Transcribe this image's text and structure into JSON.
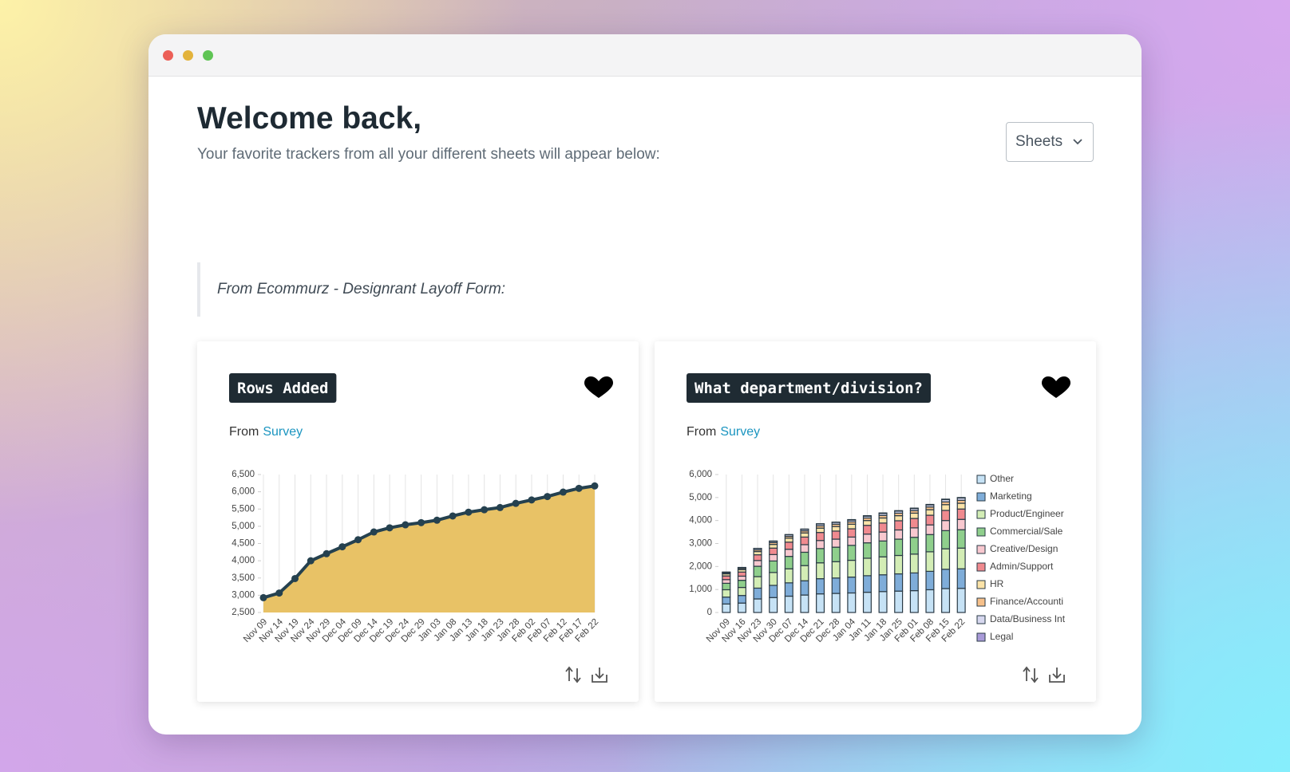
{
  "header": {
    "title": "Welcome back,",
    "subtitle": "Your favorite trackers from all your different sheets will appear below:"
  },
  "dropdown": {
    "label": "Sheets"
  },
  "section": {
    "label": "From Ecommurz - Designrant Layoff Form:"
  },
  "cards": [
    {
      "from": "From",
      "source": "Survey"
    },
    {
      "from": "From",
      "source": "Survey"
    }
  ],
  "chart_data": [
    {
      "type": "area",
      "title": "Rows Added",
      "color": "#e8c266",
      "line_color": "#25414f",
      "grid": true,
      "categories": [
        "Nov 09",
        "Nov 14",
        "Nov 19",
        "Nov 24",
        "Nov 29",
        "Dec 04",
        "Dec 09",
        "Dec 14",
        "Dec 19",
        "Dec 24",
        "Dec 29",
        "Jan 03",
        "Jan 08",
        "Jan 13",
        "Jan 18",
        "Jan 23",
        "Jan 28",
        "Feb 02",
        "Feb 07",
        "Feb 12",
        "Feb 17",
        "Feb 22"
      ],
      "values": [
        2930,
        3065,
        3484,
        3999,
        4205,
        4405,
        4610,
        4835,
        4955,
        5042,
        5105,
        5176,
        5298,
        5408,
        5479,
        5543,
        5664,
        5763,
        5862,
        5990,
        6099,
        6170
      ],
      "ylim": [
        2500,
        6500
      ],
      "yticks": [
        {
          "value": 2500,
          "label": "2,500"
        },
        {
          "value": 3000,
          "label": "3,000"
        },
        {
          "value": 3500,
          "label": "3,500"
        },
        {
          "value": 4000,
          "label": "4,000"
        },
        {
          "value": 4500,
          "label": "4,500"
        },
        {
          "value": 5000,
          "label": "5,000"
        },
        {
          "value": 5500,
          "label": "5,500"
        },
        {
          "value": 6000,
          "label": "6,000"
        },
        {
          "value": 6500,
          "label": "6,500"
        }
      ]
    },
    {
      "type": "stacked_bar",
      "title": "What department/division?",
      "grid": true,
      "categories": [
        "Nov 09",
        "Nov 16",
        "Nov 23",
        "Nov 30",
        "Dec 07",
        "Dec 14",
        "Dec 21",
        "Dec 28",
        "Jan 04",
        "Jan 11",
        "Jan 18",
        "Jan 25",
        "Feb 01",
        "Feb 08",
        "Feb 15",
        "Feb 22"
      ],
      "ylim": [
        0,
        6000
      ],
      "yticks": [
        0,
        {
          "value": 1000,
          "label": "1,000"
        },
        {
          "value": 2000,
          "label": "2,000"
        },
        {
          "value": 3000,
          "label": "3,000"
        },
        {
          "value": 4000,
          "label": "4,000"
        },
        {
          "value": 5000,
          "label": "5,000"
        },
        {
          "value": 6000,
          "label": "6,000"
        }
      ],
      "series": [
        {
          "name": "Other",
          "color": "#c6e2f5",
          "values": [
            370,
            410,
            590,
            650,
            710,
            760,
            810,
            830,
            850,
            880,
            910,
            930,
            950,
            990,
            1040,
            1050
          ]
        },
        {
          "name": "Marketing",
          "color": "#7fadd9",
          "values": [
            300,
            330,
            470,
            530,
            580,
            620,
            660,
            670,
            690,
            720,
            730,
            750,
            770,
            800,
            840,
            850
          ]
        },
        {
          "name": "Product/Engineer",
          "color": "#d3edb5",
          "values": [
            320,
            350,
            500,
            560,
            610,
            660,
            690,
            710,
            730,
            760,
            780,
            800,
            820,
            850,
            890,
            900
          ]
        },
        {
          "name": "Commercial/Sale",
          "color": "#8fcf8c",
          "values": [
            280,
            310,
            450,
            500,
            540,
            580,
            620,
            630,
            650,
            670,
            690,
            710,
            730,
            750,
            790,
            800
          ]
        },
        {
          "name": "Creative/Design",
          "color": "#f8c8cf",
          "values": [
            160,
            180,
            250,
            280,
            310,
            330,
            350,
            350,
            360,
            380,
            390,
            400,
            410,
            420,
            440,
            450
          ]
        },
        {
          "name": "Admin/Support",
          "color": "#f08a8f",
          "values": [
            160,
            180,
            250,
            280,
            310,
            330,
            350,
            350,
            360,
            380,
            390,
            400,
            410,
            420,
            440,
            450
          ]
        },
        {
          "name": "HR",
          "color": "#fbe3a8",
          "values": [
            90,
            100,
            140,
            160,
            170,
            180,
            190,
            200,
            200,
            210,
            220,
            220,
            230,
            240,
            250,
            250
          ]
        },
        {
          "name": "Finance/Accounti",
          "color": "#f6c08a",
          "values": [
            40,
            50,
            70,
            80,
            80,
            90,
            100,
            100,
            100,
            110,
            110,
            110,
            110,
            120,
            120,
            130
          ]
        },
        {
          "name": "Data/Business Int",
          "color": "#d7d8ef",
          "values": [
            30,
            40,
            60,
            60,
            70,
            70,
            80,
            80,
            80,
            80,
            90,
            90,
            90,
            90,
            100,
            100
          ]
        },
        {
          "name": "Legal",
          "color": "#a89ad8",
          "values": [
            10,
            10,
            10,
            10,
            10,
            10,
            10,
            10,
            20,
            20,
            20,
            20,
            20,
            20,
            20,
            20
          ]
        }
      ]
    }
  ]
}
